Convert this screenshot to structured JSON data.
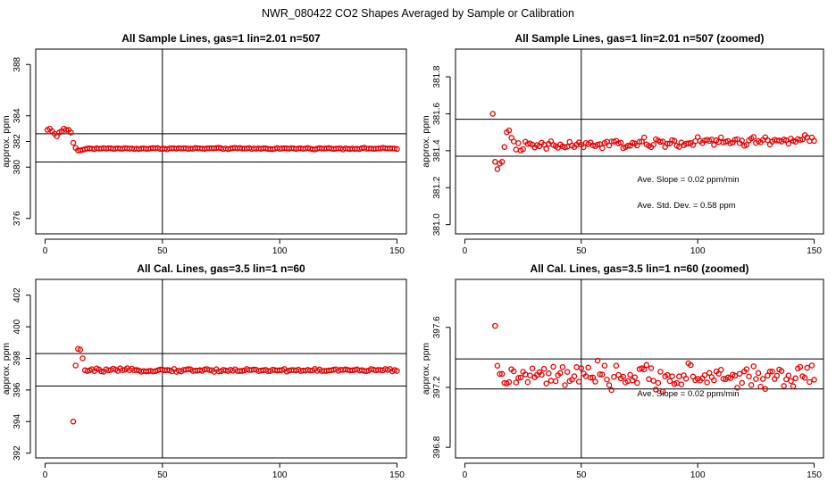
{
  "figure": {
    "title": "NWR_080422  CO2 Shapes Averaged by Sample or Calibration"
  },
  "chart_data": [
    {
      "id": "p1",
      "type": "scatter",
      "title": "All Sample Lines, gas=1 lin=2.01 n=507",
      "xlabel": "",
      "ylabel": "approx. ppm",
      "xlim": [
        -4,
        154
      ],
      "ylim": [
        374.8,
        389.2
      ],
      "xticks": [
        0,
        50,
        100,
        150
      ],
      "yticks": [
        376,
        380,
        382,
        384,
        388
      ],
      "vline": 50,
      "hlines": [
        380.4,
        382.6
      ],
      "color": "#e00000",
      "x_start": 1,
      "x_end": 150,
      "values_head": [
        382.9,
        383.0,
        382.8,
        382.6,
        382.4,
        382.7,
        382.8,
        383.0,
        382.9,
        382.9,
        382.7,
        381.9,
        381.5,
        381.3,
        381.3,
        381.35,
        381.4,
        381.45
      ],
      "values_tail_level": 381.45,
      "values_tail_jitter": 0.05
    },
    {
      "id": "p2",
      "type": "scatter",
      "title": "All Sample Lines, gas=1 lin=2.01 n=507 (zoomed)",
      "xlabel": "",
      "ylabel": "approx. ppm",
      "xlim": [
        -4,
        154
      ],
      "ylim": [
        380.95,
        381.95
      ],
      "xticks": [
        0,
        50,
        100,
        150
      ],
      "yticks": [
        381.0,
        381.2,
        381.4,
        381.6,
        381.8
      ],
      "vline": 50,
      "hlines": [
        381.37,
        381.57
      ],
      "color": "#e00000",
      "x_start": 12,
      "x_end": 150,
      "values_head": [
        381.6,
        381.34,
        381.3,
        381.33,
        381.34,
        381.42,
        381.5,
        381.51,
        381.47,
        381.45
      ],
      "values_tail_level": 381.43,
      "values_tail_jitter": 0.025,
      "values_tail_trend": 0.0003,
      "annotations": [
        {
          "text": "Ave. Slope =  0.02  ppm/min",
          "x": 74,
          "y": 381.23
        },
        {
          "text": "Ave. Std. Dev. =  0.58  ppm",
          "x": 74,
          "y": 381.09
        }
      ]
    },
    {
      "id": "p3",
      "type": "scatter",
      "title": "All Cal. Lines, gas=3.5 lin=1 n=60",
      "xlabel": "",
      "ylabel": "approx. ppm",
      "xlim": [
        -4,
        154
      ],
      "ylim": [
        391.7,
        403.0
      ],
      "xticks": [
        0,
        50,
        100,
        150
      ],
      "yticks": [
        392,
        394,
        396,
        398,
        400,
        402
      ],
      "vline": 50,
      "hlines": [
        396.25,
        398.3
      ],
      "color": "#e00000",
      "x_start": 12,
      "x_end": 150,
      "values_head": [
        394.0,
        397.55,
        398.6,
        398.55,
        398.0,
        397.25,
        397.2,
        397.25
      ],
      "values_tail_level": 397.25,
      "values_tail_jitter": 0.09
    },
    {
      "id": "p4",
      "type": "scatter",
      "title": "All Cal. Lines, gas=3.5 lin=1 n=60 (zoomed)",
      "xlabel": "",
      "ylabel": "approx. ppm",
      "xlim": [
        -4,
        154
      ],
      "ylim": [
        396.73,
        397.92
      ],
      "xticks": [
        0,
        50,
        100,
        150
      ],
      "yticks": [
        396.8,
        397.2,
        397.6
      ],
      "vline": 50,
      "hlines": [
        397.19,
        397.39
      ],
      "color": "#e00000",
      "x_start": 13,
      "x_end": 150,
      "values_head": [
        397.61
      ],
      "values_tail_level": 397.27,
      "values_tail_jitter": 0.075,
      "annotations": [
        {
          "text": "Ave. Slope =  0.02  ppm/min",
          "x": 74,
          "y": 397.14
        }
      ]
    }
  ]
}
